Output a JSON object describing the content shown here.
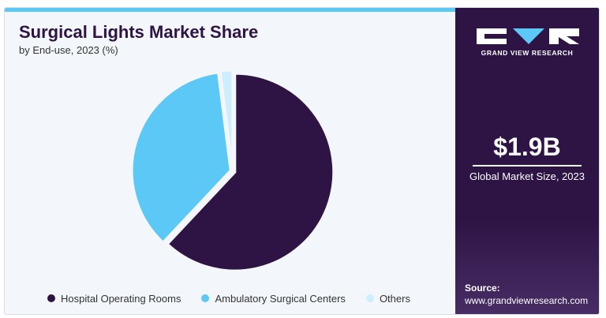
{
  "header": {
    "title": "Surgical Lights Market Share",
    "subtitle": "by End-use, 2023 (%)"
  },
  "chart_data": {
    "type": "pie",
    "categories": [
      "Hospital Operating Rooms",
      "Ambulatory Surgical Centers",
      "Others"
    ],
    "values": [
      62,
      36,
      2
    ],
    "colors": [
      "#2e1445",
      "#5bc8f5",
      "#cdeefc"
    ],
    "legend_position": "bottom"
  },
  "sidebar": {
    "brand": "GRAND VIEW RESEARCH",
    "market_value": "$1.9B",
    "market_label": "Global Market Size, 2023",
    "source_label": "Source:",
    "source_url": "www.grandviewresearch.com"
  },
  "colors": {
    "brand_purple": "#2e1445",
    "accent_blue": "#5bc8f5"
  }
}
